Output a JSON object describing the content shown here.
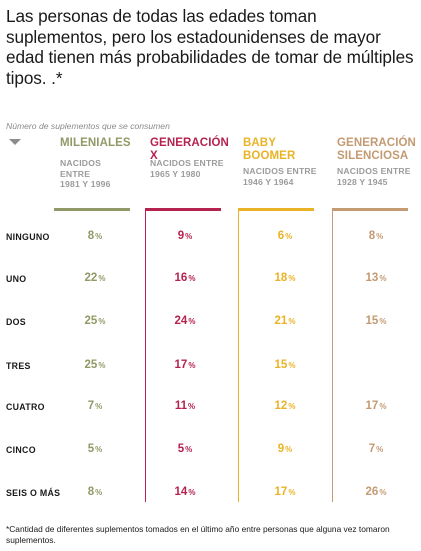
{
  "title": "Las personas de todas las edades toman suplementos, pero los estadounidenses de mayor edad tienen más probabilidades de tomar de múltiples tipos. .*",
  "subtitle": "Número de suplementos que se consumen",
  "footnote": "*Cantidad de diferentes suplementos tomados en el último año entre personas que alguna vez tomaron suplementos.",
  "colors": {
    "milenials": "#8f9a66",
    "genx": "#b5224f",
    "boomer": "#e9b325",
    "silent": "#c39a72"
  },
  "chart_data": {
    "type": "table",
    "unit": "%",
    "categories": [
      "NINGUNO",
      "UNO",
      "DOS",
      "TRES",
      "CUATRO",
      "CINCO",
      "SEIS O MÁS"
    ],
    "series": [
      {
        "key": "milenials",
        "name": "MILENIALES",
        "born": "NACIDOS\nENTRE\n1981 Y 1996",
        "values": [
          8,
          22,
          25,
          25,
          7,
          5,
          8
        ]
      },
      {
        "key": "genx",
        "name": "GENERACIÓN\nX",
        "born": "NACIDOS ENTRE\n1965 Y 1980",
        "values": [
          9,
          16,
          24,
          17,
          11,
          5,
          14
        ]
      },
      {
        "key": "boomer",
        "name": "BABY\nBOOMER",
        "born": "NACIDOS ENTRE\n1946 Y 1964",
        "values": [
          6,
          18,
          21,
          15,
          12,
          9,
          17
        ]
      },
      {
        "key": "silent",
        "name": "GENERACIÓN\n SILENCIOSA",
        "born": "NACIDOS ENTRE\n1928 Y 1945",
        "values": [
          8,
          13,
          15,
          null,
          17,
          7,
          26
        ]
      }
    ]
  }
}
